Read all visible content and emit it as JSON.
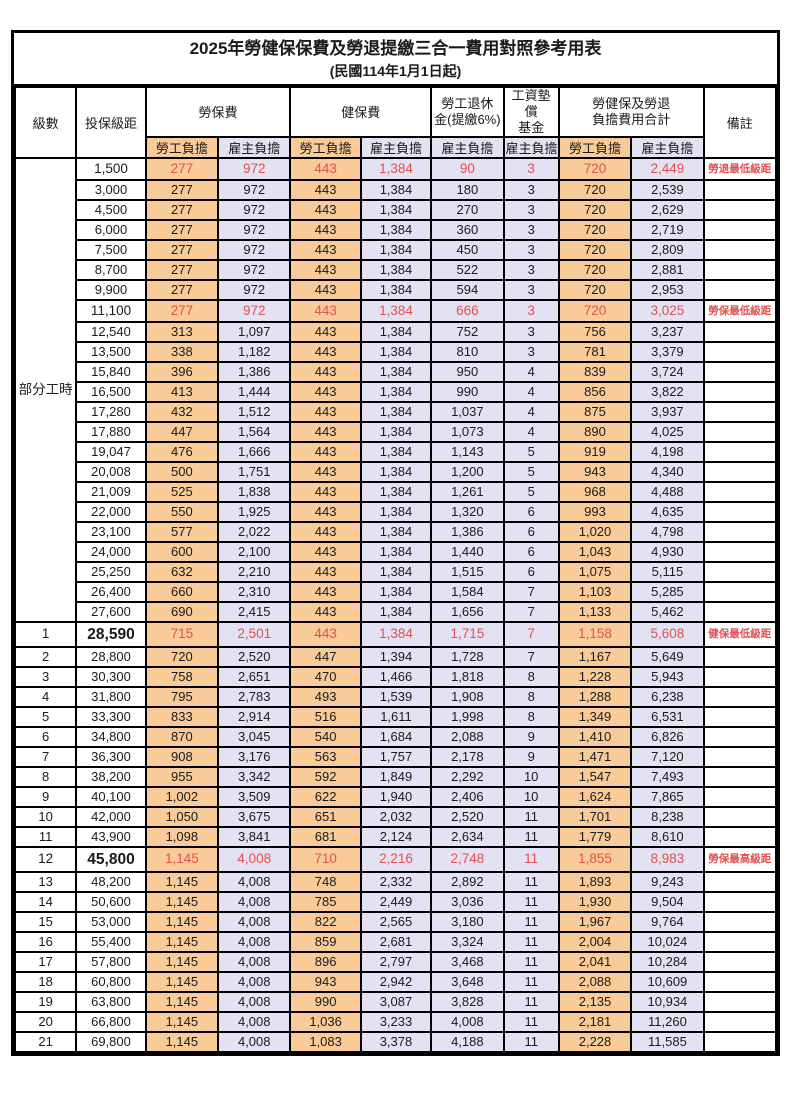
{
  "title": {
    "main": "2025年勞健保保費及勞退提繳三合一費用對照參考用表",
    "sub": "(民國114年1月1日起)"
  },
  "colors": {
    "employee_fill": "#F9CB98",
    "employer_fill": "#E3E2F2",
    "highlight_text": "#E25050",
    "border": "#000000"
  },
  "header": {
    "level": "級數",
    "bracket": "投保級距",
    "labor_insurance": "勞保費",
    "health_insurance": "健保費",
    "pension": "勞工退休\n金(提繳6%)",
    "wage_fund": "工資墊償\n基金",
    "total": "勞健保及勞退\n負擔費用合計",
    "note": "備註",
    "employee_label": "勞工負擔",
    "employer_label": "雇主負擔"
  },
  "part_time": {
    "label": "部分工時",
    "span": 23
  },
  "rows": [
    {
      "level": "",
      "bracket": "1,500",
      "values": [
        "277",
        "972",
        "443",
        "1,384",
        "90",
        "3",
        "720",
        "2,449"
      ],
      "note": "勞退最低級距",
      "red": true
    },
    {
      "level": "",
      "bracket": "3,000",
      "values": [
        "277",
        "972",
        "443",
        "1,384",
        "180",
        "3",
        "720",
        "2,539"
      ],
      "note": ""
    },
    {
      "level": "",
      "bracket": "4,500",
      "values": [
        "277",
        "972",
        "443",
        "1,384",
        "270",
        "3",
        "720",
        "2,629"
      ],
      "note": ""
    },
    {
      "level": "",
      "bracket": "6,000",
      "values": [
        "277",
        "972",
        "443",
        "1,384",
        "360",
        "3",
        "720",
        "2,719"
      ],
      "note": ""
    },
    {
      "level": "",
      "bracket": "7,500",
      "values": [
        "277",
        "972",
        "443",
        "1,384",
        "450",
        "3",
        "720",
        "2,809"
      ],
      "note": ""
    },
    {
      "level": "",
      "bracket": "8,700",
      "values": [
        "277",
        "972",
        "443",
        "1,384",
        "522",
        "3",
        "720",
        "2,881"
      ],
      "note": ""
    },
    {
      "level": "",
      "bracket": "9,900",
      "values": [
        "277",
        "972",
        "443",
        "1,384",
        "594",
        "3",
        "720",
        "2,953"
      ],
      "note": ""
    },
    {
      "level": "",
      "bracket": "11,100",
      "values": [
        "277",
        "972",
        "443",
        "1,384",
        "666",
        "3",
        "720",
        "3,025"
      ],
      "note": "勞保最低級距",
      "red": true
    },
    {
      "level": "",
      "bracket": "12,540",
      "values": [
        "313",
        "1,097",
        "443",
        "1,384",
        "752",
        "3",
        "756",
        "3,237"
      ],
      "note": ""
    },
    {
      "level": "",
      "bracket": "13,500",
      "values": [
        "338",
        "1,182",
        "443",
        "1,384",
        "810",
        "3",
        "781",
        "3,379"
      ],
      "note": ""
    },
    {
      "level": "",
      "bracket": "15,840",
      "values": [
        "396",
        "1,386",
        "443",
        "1,384",
        "950",
        "4",
        "839",
        "3,724"
      ],
      "note": ""
    },
    {
      "level": "",
      "bracket": "16,500",
      "values": [
        "413",
        "1,444",
        "443",
        "1,384",
        "990",
        "4",
        "856",
        "3,822"
      ],
      "note": ""
    },
    {
      "level": "",
      "bracket": "17,280",
      "values": [
        "432",
        "1,512",
        "443",
        "1,384",
        "1,037",
        "4",
        "875",
        "3,937"
      ],
      "note": ""
    },
    {
      "level": "",
      "bracket": "17,880",
      "values": [
        "447",
        "1,564",
        "443",
        "1,384",
        "1,073",
        "4",
        "890",
        "4,025"
      ],
      "note": ""
    },
    {
      "level": "",
      "bracket": "19,047",
      "values": [
        "476",
        "1,666",
        "443",
        "1,384",
        "1,143",
        "5",
        "919",
        "4,198"
      ],
      "note": ""
    },
    {
      "level": "",
      "bracket": "20,008",
      "values": [
        "500",
        "1,751",
        "443",
        "1,384",
        "1,200",
        "5",
        "943",
        "4,340"
      ],
      "note": ""
    },
    {
      "level": "",
      "bracket": "21,009",
      "values": [
        "525",
        "1,838",
        "443",
        "1,384",
        "1,261",
        "5",
        "968",
        "4,488"
      ],
      "note": ""
    },
    {
      "level": "",
      "bracket": "22,000",
      "values": [
        "550",
        "1,925",
        "443",
        "1,384",
        "1,320",
        "6",
        "993",
        "4,635"
      ],
      "note": ""
    },
    {
      "level": "",
      "bracket": "23,100",
      "values": [
        "577",
        "2,022",
        "443",
        "1,384",
        "1,386",
        "6",
        "1,020",
        "4,798"
      ],
      "note": ""
    },
    {
      "level": "",
      "bracket": "24,000",
      "values": [
        "600",
        "2,100",
        "443",
        "1,384",
        "1,440",
        "6",
        "1,043",
        "4,930"
      ],
      "note": ""
    },
    {
      "level": "",
      "bracket": "25,250",
      "values": [
        "632",
        "2,210",
        "443",
        "1,384",
        "1,515",
        "6",
        "1,075",
        "5,115"
      ],
      "note": ""
    },
    {
      "level": "",
      "bracket": "26,400",
      "values": [
        "660",
        "2,310",
        "443",
        "1,384",
        "1,584",
        "7",
        "1,103",
        "5,285"
      ],
      "note": ""
    },
    {
      "level": "",
      "bracket": "27,600",
      "values": [
        "690",
        "2,415",
        "443",
        "1,384",
        "1,656",
        "7",
        "1,133",
        "5,462"
      ],
      "note": ""
    },
    {
      "level": "1",
      "bracket": "28,590",
      "values": [
        "715",
        "2,501",
        "443",
        "1,384",
        "1,715",
        "7",
        "1,158",
        "5,608"
      ],
      "note": "健保最低級距",
      "red": true,
      "big": true
    },
    {
      "level": "2",
      "bracket": "28,800",
      "values": [
        "720",
        "2,520",
        "447",
        "1,394",
        "1,728",
        "7",
        "1,167",
        "5,649"
      ],
      "note": ""
    },
    {
      "level": "3",
      "bracket": "30,300",
      "values": [
        "758",
        "2,651",
        "470",
        "1,466",
        "1,818",
        "8",
        "1,228",
        "5,943"
      ],
      "note": ""
    },
    {
      "level": "4",
      "bracket": "31,800",
      "values": [
        "795",
        "2,783",
        "493",
        "1,539",
        "1,908",
        "8",
        "1,288",
        "6,238"
      ],
      "note": ""
    },
    {
      "level": "5",
      "bracket": "33,300",
      "values": [
        "833",
        "2,914",
        "516",
        "1,611",
        "1,998",
        "8",
        "1,349",
        "6,531"
      ],
      "note": ""
    },
    {
      "level": "6",
      "bracket": "34,800",
      "values": [
        "870",
        "3,045",
        "540",
        "1,684",
        "2,088",
        "9",
        "1,410",
        "6,826"
      ],
      "note": ""
    },
    {
      "level": "7",
      "bracket": "36,300",
      "values": [
        "908",
        "3,176",
        "563",
        "1,757",
        "2,178",
        "9",
        "1,471",
        "7,120"
      ],
      "note": ""
    },
    {
      "level": "8",
      "bracket": "38,200",
      "values": [
        "955",
        "3,342",
        "592",
        "1,849",
        "2,292",
        "10",
        "1,547",
        "7,493"
      ],
      "note": ""
    },
    {
      "level": "9",
      "bracket": "40,100",
      "values": [
        "1,002",
        "3,509",
        "622",
        "1,940",
        "2,406",
        "10",
        "1,624",
        "7,865"
      ],
      "note": ""
    },
    {
      "level": "10",
      "bracket": "42,000",
      "values": [
        "1,050",
        "3,675",
        "651",
        "2,032",
        "2,520",
        "11",
        "1,701",
        "8,238"
      ],
      "note": ""
    },
    {
      "level": "11",
      "bracket": "43,900",
      "values": [
        "1,098",
        "3,841",
        "681",
        "2,124",
        "2,634",
        "11",
        "1,779",
        "8,610"
      ],
      "note": ""
    },
    {
      "level": "12",
      "bracket": "45,800",
      "values": [
        "1,145",
        "4,008",
        "710",
        "2,216",
        "2,748",
        "11",
        "1,855",
        "8,983"
      ],
      "note": "勞保最高級距",
      "red": true,
      "big": true
    },
    {
      "level": "13",
      "bracket": "48,200",
      "values": [
        "1,145",
        "4,008",
        "748",
        "2,332",
        "2,892",
        "11",
        "1,893",
        "9,243"
      ],
      "note": ""
    },
    {
      "level": "14",
      "bracket": "50,600",
      "values": [
        "1,145",
        "4,008",
        "785",
        "2,449",
        "3,036",
        "11",
        "1,930",
        "9,504"
      ],
      "note": ""
    },
    {
      "level": "15",
      "bracket": "53,000",
      "values": [
        "1,145",
        "4,008",
        "822",
        "2,565",
        "3,180",
        "11",
        "1,967",
        "9,764"
      ],
      "note": ""
    },
    {
      "level": "16",
      "bracket": "55,400",
      "values": [
        "1,145",
        "4,008",
        "859",
        "2,681",
        "3,324",
        "11",
        "2,004",
        "10,024"
      ],
      "note": ""
    },
    {
      "level": "17",
      "bracket": "57,800",
      "values": [
        "1,145",
        "4,008",
        "896",
        "2,797",
        "3,468",
        "11",
        "2,041",
        "10,284"
      ],
      "note": ""
    },
    {
      "level": "18",
      "bracket": "60,800",
      "values": [
        "1,145",
        "4,008",
        "943",
        "2,942",
        "3,648",
        "11",
        "2,088",
        "10,609"
      ],
      "note": ""
    },
    {
      "level": "19",
      "bracket": "63,800",
      "values": [
        "1,145",
        "4,008",
        "990",
        "3,087",
        "3,828",
        "11",
        "2,135",
        "10,934"
      ],
      "note": ""
    },
    {
      "level": "20",
      "bracket": "66,800",
      "values": [
        "1,145",
        "4,008",
        "1,036",
        "3,233",
        "4,008",
        "11",
        "2,181",
        "11,260"
      ],
      "note": ""
    },
    {
      "level": "21",
      "bracket": "69,800",
      "values": [
        "1,145",
        "4,008",
        "1,083",
        "3,378",
        "4,188",
        "11",
        "2,228",
        "11,585"
      ],
      "note": ""
    }
  ]
}
